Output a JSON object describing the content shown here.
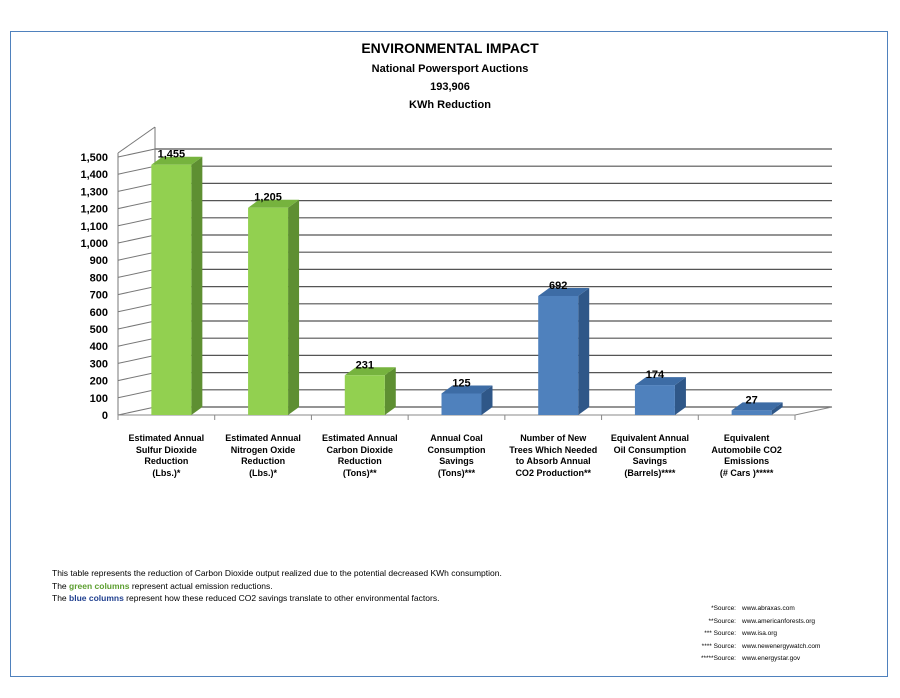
{
  "chart_data": {
    "type": "bar",
    "title": "ENVIRONMENTAL IMPACT",
    "subtitle": "National Powersport Auctions",
    "kwh_value": "193,906",
    "kwh_label": "KWh Reduction",
    "categories": [
      [
        "Estimated Annual",
        "Sulfur Dioxide",
        "Reduction",
        "(Lbs.)*"
      ],
      [
        "Estimated Annual",
        "Nitrogen Oxide",
        "Reduction",
        "(Lbs.)*"
      ],
      [
        "Estimated Annual",
        "Carbon Dioxide",
        "Reduction",
        "(Tons)**"
      ],
      [
        "Annual Coal",
        "Consumption",
        "Savings",
        "(Tons)***"
      ],
      [
        "Number of New",
        "Trees Which Needed",
        "to Absorb Annual",
        "CO2 Production**"
      ],
      [
        "Equivalent Annual",
        "Oil Consumption",
        "Savings",
        "(Barrels)****"
      ],
      [
        "Equivalent",
        "Automobile CO2",
        "Emissions",
        "(# Cars )*****"
      ]
    ],
    "values": [
      1455,
      1205,
      231,
      125,
      692,
      174,
      27
    ],
    "value_labels": [
      "1,455",
      "1,205",
      "231",
      "125",
      "692",
      "174",
      "27"
    ],
    "bar_colors": [
      "green",
      "green",
      "green",
      "blue",
      "blue",
      "blue",
      "blue"
    ],
    "colors": {
      "green": {
        "front": "#92d050",
        "side": "#5e8f32",
        "top": "#76b33e"
      },
      "blue": {
        "front": "#4f81bd",
        "side": "#2f5788",
        "top": "#3d6ca5"
      }
    },
    "ylim": [
      0,
      1500
    ],
    "yticks": [
      "0",
      "100",
      "200",
      "300",
      "400",
      "500",
      "600",
      "700",
      "800",
      "900",
      "1,000",
      "1,100",
      "1,200",
      "1,300",
      "1,400",
      "1,500"
    ],
    "grid": true
  },
  "notes": {
    "line1": "This table represents the reduction of Carbon Dioxide output realized due to the potential decreased KWh consumption.",
    "line2_pre": "The ",
    "line2_highlight": "green columns",
    "line2_post": " represent  actual  emission reductions.",
    "line3_pre": "The ",
    "line3_highlight": "blue columns",
    "line3_post": " represent how these reduced CO2 savings translate to other environmental factors."
  },
  "sources": [
    {
      "label": "*Source:",
      "site": "www.abraxas.com"
    },
    {
      "label": "**Source:",
      "site": "www.americanforests.org"
    },
    {
      "label": "*** Source:",
      "site": "www.isa.org"
    },
    {
      "label": "**** Source:",
      "site": "www.newenergywatch.com"
    },
    {
      "label": "*****Source:",
      "site": "www.energystar.gov"
    }
  ]
}
